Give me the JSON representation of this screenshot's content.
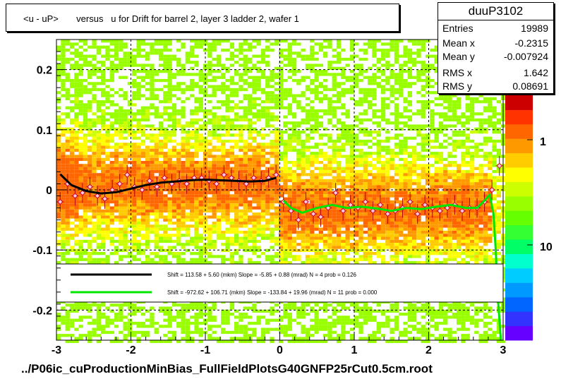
{
  "title": "<u - uP>       versus   u for Drift for barrel 2, layer 3 ladder 2, wafer 1",
  "footer": "../P06ic_cuProductionMinBias_FullFieldPlotsG40GNFP25rCut0.5cm.root",
  "stats": {
    "name": "duuP3102",
    "rows": [
      {
        "key": "Entries",
        "value": "19989"
      },
      {
        "key": "Mean x",
        "value": "-0.2315"
      },
      {
        "key": "Mean y",
        "value": "-0.007924"
      },
      {
        "key": "RMS x",
        "value": "1.642"
      },
      {
        "key": "RMS y",
        "value": "0.08691"
      }
    ]
  },
  "legend": [
    {
      "text": "Shift =   113.58 + 5.60 (mkm) Slope =    -5.85 + 0.88 (mrad)  N = 4 prob = 0.126",
      "color": "#000000"
    },
    {
      "text": "Shift =  -972.62 + 106.71 (mkm) Slope =  -133.84 + 19.96 (mrad)  N = 11 prob = 0.000",
      "color": "#00e600"
    }
  ],
  "chart_data": {
    "type": "heatmap",
    "xlim": [
      -3,
      3
    ],
    "ylim": [
      -0.25,
      0.25
    ],
    "x_ticks": [
      {
        "v": -3,
        "label": "-3"
      },
      {
        "v": -2,
        "label": "-2"
      },
      {
        "v": -1,
        "label": "-1"
      },
      {
        "v": 0,
        "label": "0"
      },
      {
        "v": 1,
        "label": "1"
      },
      {
        "v": 2,
        "label": "2"
      },
      {
        "v": 3,
        "label": "3"
      }
    ],
    "y_ticks": [
      {
        "v": -0.2,
        "label": "-0.2"
      },
      {
        "v": -0.1,
        "label": "-0.1"
      },
      {
        "v": 0,
        "label": "0"
      },
      {
        "v": 0.1,
        "label": "0.1"
      },
      {
        "v": 0.2,
        "label": "0.2"
      }
    ],
    "colorbar_labels": [
      {
        "v": 1,
        "label": "1"
      },
      {
        "v": 10,
        "label": "10"
      }
    ],
    "colorbar_colors": [
      "#6600ff",
      "#3333ff",
      "#0066ff",
      "#0099ff",
      "#00ccff",
      "#00ffcc",
      "#00ff66",
      "#33ff33",
      "#66ff00",
      "#99ff00",
      "#ccff00",
      "#ffff00",
      "#ffcc00",
      "#ff9900",
      "#ff6600",
      "#ff3300",
      "#cc0000"
    ],
    "grid": true,
    "series": [
      {
        "name": "fit black",
        "color": "#000000",
        "x": [
          -2.95,
          -2.8,
          -2.6,
          -2.4,
          -2.2,
          -2.0,
          -1.8,
          -1.6,
          -1.4,
          -1.2,
          -1.0,
          -0.8,
          -0.6,
          -0.4,
          -0.2,
          -0.05
        ],
        "y": [
          0.026,
          0.008,
          -0.002,
          -0.006,
          -0.004,
          0.002,
          0.008,
          0.012,
          0.014,
          0.016,
          0.017,
          0.016,
          0.015,
          0.014,
          0.015,
          0.02
        ]
      },
      {
        "name": "fit green",
        "color": "#00e600",
        "x": [
          0.05,
          0.15,
          0.3,
          0.5,
          0.7,
          0.9,
          1.1,
          1.3,
          1.5,
          1.7,
          1.9,
          2.1,
          2.3,
          2.5,
          2.65,
          2.75,
          2.82,
          2.87,
          2.9,
          2.93,
          2.97
        ],
        "y": [
          -0.018,
          -0.03,
          -0.038,
          -0.03,
          -0.025,
          -0.03,
          -0.028,
          -0.031,
          -0.035,
          -0.03,
          -0.032,
          -0.028,
          -0.025,
          -0.03,
          -0.03,
          -0.018,
          -0.008,
          -0.04,
          -0.1,
          -0.18,
          -0.25
        ]
      }
    ],
    "profile_points": {
      "x": [
        -2.95,
        -2.85,
        -2.75,
        -2.65,
        -2.55,
        -2.45,
        -2.35,
        -2.25,
        -2.15,
        -2.05,
        -1.95,
        -1.85,
        -1.75,
        -1.65,
        -1.55,
        -1.45,
        -1.35,
        -1.25,
        -1.15,
        -1.05,
        -0.95,
        -0.85,
        -0.75,
        -0.65,
        -0.55,
        -0.45,
        -0.35,
        -0.25,
        -0.15,
        -0.05,
        0.05,
        0.15,
        0.25,
        0.35,
        0.45,
        0.55,
        0.65,
        0.75,
        0.85,
        0.95,
        1.05,
        1.15,
        1.25,
        1.35,
        1.45,
        1.55,
        1.65,
        1.75,
        1.85,
        1.95,
        2.05,
        2.15,
        2.25,
        2.35,
        2.45,
        2.55,
        2.65,
        2.75,
        2.85,
        2.95
      ],
      "y": [
        -0.02,
        0.01,
        -0.01,
        -0.005,
        0.005,
        -0.01,
        -0.015,
        0.0,
        0.01,
        0.025,
        0.005,
        0.0,
        0.015,
        0.005,
        0.02,
        0.01,
        0.015,
        0.01,
        0.02,
        0.02,
        0.015,
        0.01,
        0.025,
        0.02,
        0.015,
        0.01,
        0.02,
        0.015,
        0.02,
        0.025,
        -0.02,
        -0.035,
        -0.05,
        -0.02,
        -0.04,
        -0.045,
        -0.03,
        -0.005,
        -0.035,
        -0.025,
        -0.03,
        -0.02,
        -0.035,
        -0.025,
        -0.04,
        -0.035,
        -0.03,
        -0.02,
        -0.04,
        -0.025,
        -0.03,
        -0.035,
        -0.03,
        -0.025,
        -0.035,
        -0.03,
        -0.03,
        -0.02,
        0.0,
        0.04
      ]
    }
  }
}
